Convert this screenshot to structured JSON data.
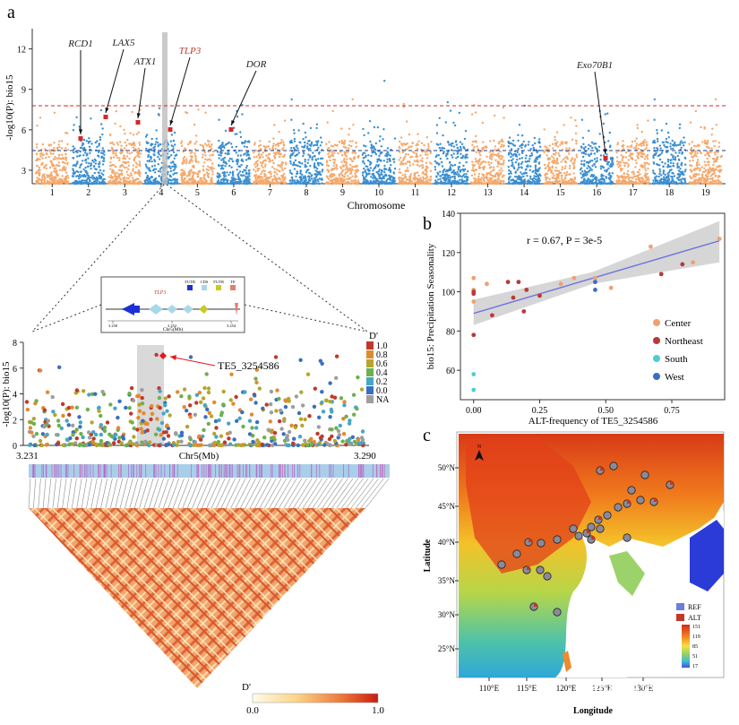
{
  "panel_a": {
    "letter": "a",
    "ylabel": "-log10(P): bio15",
    "yticks": [
      "3",
      "6",
      "9",
      "12"
    ],
    "xlabel": "Chromosome",
    "chromosomes": [
      "1",
      "2",
      "3",
      "4",
      "5",
      "6",
      "7",
      "8",
      "9",
      "10",
      "11",
      "12",
      "13",
      "14",
      "15",
      "16",
      "17",
      "18",
      "19"
    ],
    "genes": [
      {
        "name": "RCD1",
        "color": "#222222"
      },
      {
        "name": "LAX5",
        "color": "#222222"
      },
      {
        "name": "ATX1",
        "color": "#222222"
      },
      {
        "name": "TLP3",
        "color": "#c0392b"
      },
      {
        "name": "DOR",
        "color": "#222222"
      },
      {
        "name": "Exo70B1",
        "color": "#222222"
      }
    ],
    "chrom_colors": {
      "odd": "#f5a86b",
      "even": "#3b8fd1"
    },
    "sig_line_color": "#d62728",
    "sug_line_color": "#1f3b8a"
  },
  "panel_ld": {
    "ylabel": "-log10(P): bio15",
    "yticks": [
      "0",
      "2",
      "4",
      "6",
      "8"
    ],
    "x_start": "3.231",
    "x_end": "3.290",
    "xlabel": "Chr5(Mb)",
    "snp_label": "TE5_3254586",
    "legend_title": "D'",
    "legend_items": [
      {
        "label": "1.0",
        "color": "#c0392b"
      },
      {
        "label": "0.8",
        "color": "#e08a2f"
      },
      {
        "label": "0.6",
        "color": "#b5a62b"
      },
      {
        "label": "0.4",
        "color": "#6db04f"
      },
      {
        "label": "0.2",
        "color": "#46a6c4"
      },
      {
        "label": "0.0",
        "color": "#3a6fbf"
      },
      {
        "label": "NA",
        "color": "#9e9e9e"
      }
    ],
    "inset": {
      "gene": "TLP3",
      "legend": [
        "3'UTR",
        "CDS",
        "5'UTR",
        "TE"
      ],
      "ticks": [
        "3.250",
        "3.252",
        "3.254"
      ],
      "xlabel": "Chr5(Mb)"
    },
    "heatmap_scale": {
      "title": "D'",
      "min": "0.0",
      "max": "1.0"
    }
  },
  "chart_data": [
    {
      "type": "scatter",
      "title": "",
      "xlabel": "ALT-frequency of TE5_3254586",
      "ylabel": "bio15: Precipitation Seasonality",
      "xlim": [
        -0.05,
        0.95
      ],
      "ylim": [
        45,
        140
      ],
      "xticks": [
        "0.00",
        "0.25",
        "0.50",
        "0.75"
      ],
      "yticks": [
        "60",
        "80",
        "100",
        "120",
        "140"
      ],
      "annotation": "r = 0.67, P = 3e-5",
      "legend_position": "right",
      "series": [
        {
          "name": "Center",
          "color": "#f0a070",
          "points": [
            [
              0.0,
              107
            ],
            [
              0.0,
              101
            ],
            [
              0.0,
              95
            ],
            [
              0.05,
              104
            ],
            [
              0.33,
              104
            ],
            [
              0.38,
              107
            ],
            [
              0.46,
              107
            ],
            [
              0.52,
              102
            ],
            [
              0.67,
              123
            ],
            [
              0.83,
              115
            ],
            [
              0.93,
              127
            ]
          ]
        },
        {
          "name": "Northeast",
          "color": "#b83a3a",
          "points": [
            [
              0.0,
              100
            ],
            [
              0.0,
              99
            ],
            [
              0.0,
              78
            ],
            [
              0.07,
              88
            ],
            [
              0.13,
              105
            ],
            [
              0.15,
              97
            ],
            [
              0.17,
              105
            ],
            [
              0.19,
              90
            ],
            [
              0.2,
              101
            ],
            [
              0.25,
              98
            ],
            [
              0.79,
              114
            ],
            [
              0.71,
              109
            ]
          ]
        },
        {
          "name": "South",
          "color": "#4ecdd0",
          "points": [
            [
              0.0,
              58
            ],
            [
              0.0,
              50
            ]
          ]
        },
        {
          "name": "West",
          "color": "#3a6fbf",
          "points": [
            [
              0.46,
              101
            ],
            [
              0.46,
              105
            ]
          ]
        }
      ],
      "fit_line": {
        "x": [
          0.0,
          0.93
        ],
        "y": [
          89,
          126
        ]
      }
    }
  ],
  "panel_b": {
    "letter": "b"
  },
  "panel_c": {
    "letter": "c",
    "xlabel": "Longitude",
    "ylabel": "Latitude",
    "lon_ticks": [
      "110°E",
      "115°E",
      "120°E",
      "125°E",
      "130°E"
    ],
    "lat_ticks": [
      "25°N",
      "30°N",
      "35°N",
      "40°N",
      "45°N",
      "50°N"
    ],
    "north_label": "N",
    "legend": [
      {
        "label": "REF",
        "color": "#6c7fd8"
      },
      {
        "label": "ALT",
        "color": "#c0392b"
      }
    ],
    "scale_values": [
      "151",
      "119",
      "85",
      "51",
      "17"
    ]
  },
  "watermark": "知乎 @华命生物"
}
